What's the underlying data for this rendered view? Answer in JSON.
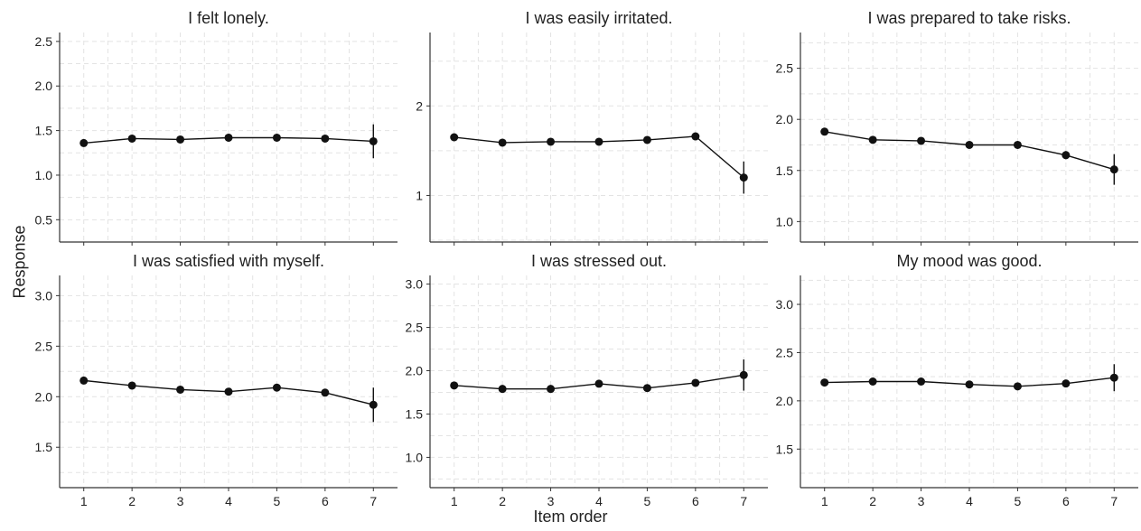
{
  "chart_data": {
    "type": "line",
    "layout": "facet-grid",
    "xlabel": "Item order",
    "ylabel": "Response",
    "grid": true,
    "x": [
      1,
      2,
      3,
      4,
      5,
      6,
      7
    ],
    "panels": [
      {
        "title": "I felt lonely.",
        "ylim": [
          0.25,
          2.6
        ],
        "yticks": [
          "0.5",
          "1.0",
          "1.5",
          "2.0",
          "2.5"
        ],
        "values": [
          1.36,
          1.41,
          1.4,
          1.42,
          1.42,
          1.41,
          1.38
        ],
        "errors": [
          0.01,
          0.01,
          0.01,
          0.01,
          0.01,
          0.03,
          0.19
        ]
      },
      {
        "title": "I was easily irritated.",
        "ylim": [
          0.48,
          2.82
        ],
        "yticks": [
          "1",
          "2"
        ],
        "values": [
          1.65,
          1.59,
          1.6,
          1.6,
          1.62,
          1.66,
          1.2
        ],
        "errors": [
          0.01,
          0.01,
          0.01,
          0.01,
          0.01,
          0.02,
          0.18
        ]
      },
      {
        "title": "I was prepared to take risks.",
        "ylim": [
          0.8,
          2.85
        ],
        "yticks": [
          "1.0",
          "1.5",
          "2.0",
          "2.5"
        ],
        "values": [
          1.88,
          1.8,
          1.79,
          1.75,
          1.75,
          1.65,
          1.51
        ],
        "errors": [
          0.01,
          0.01,
          0.01,
          0.01,
          0.01,
          0.04,
          0.15
        ]
      },
      {
        "title": "I was satisfied with myself.",
        "ylim": [
          1.1,
          3.2
        ],
        "yticks": [
          "1.5",
          "2.0",
          "2.5",
          "3.0"
        ],
        "values": [
          2.16,
          2.11,
          2.07,
          2.05,
          2.09,
          2.04,
          1.92
        ],
        "errors": [
          0.01,
          0.01,
          0.01,
          0.01,
          0.01,
          0.02,
          0.17
        ]
      },
      {
        "title": "I was stressed out.",
        "ylim": [
          0.65,
          3.1
        ],
        "yticks": [
          "1.0",
          "1.5",
          "2.0",
          "2.5",
          "3.0"
        ],
        "values": [
          1.83,
          1.79,
          1.79,
          1.85,
          1.8,
          1.86,
          1.95
        ],
        "errors": [
          0.01,
          0.01,
          0.01,
          0.01,
          0.01,
          0.04,
          0.18
        ]
      },
      {
        "title": "My mood was good.",
        "ylim": [
          1.1,
          3.3
        ],
        "yticks": [
          "1.5",
          "2.0",
          "2.5",
          "3.0"
        ],
        "values": [
          2.19,
          2.2,
          2.2,
          2.17,
          2.15,
          2.18,
          2.24
        ],
        "errors": [
          0.01,
          0.01,
          0.01,
          0.01,
          0.01,
          0.02,
          0.14
        ]
      }
    ]
  },
  "colors": {
    "line": "#111111",
    "grid": "#e3e3e3",
    "axis": "#333333",
    "text": "#222222",
    "background": "#ffffff"
  }
}
